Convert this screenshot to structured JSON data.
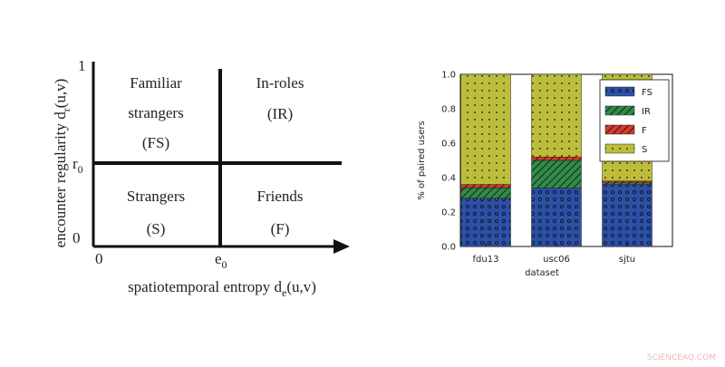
{
  "diagram": {
    "y_axis_label": {
      "text": "encounter regularity d",
      "sub": "r",
      "tail": "(u,v)"
    },
    "x_axis_label": {
      "text": "spatiotemporal entropy d",
      "sub": "e",
      "tail": "(u,v)"
    },
    "y_ticks": {
      "top": "1",
      "mid": {
        "text": "r",
        "sub": "0"
      },
      "bottom": "0"
    },
    "x_ticks": {
      "left": "0",
      "mid": {
        "text": "e",
        "sub": "0"
      }
    },
    "quadrants": {
      "top_left": [
        "Familiar",
        "strangers",
        "(FS)"
      ],
      "top_right": [
        "In-roles",
        "(IR)"
      ],
      "bottom_left": [
        "Strangers",
        "(S)"
      ],
      "bottom_right": [
        "Friends",
        "(F)"
      ]
    }
  },
  "chart_data": {
    "type": "stacked_bar",
    "xlabel": "dataset",
    "ylabel": "% of paired users",
    "categories": [
      "fdu13",
      "usc06",
      "sjtu"
    ],
    "series": [
      {
        "name": "FS",
        "color": "#2b50a8",
        "values": [
          0.28,
          0.34,
          0.36
        ]
      },
      {
        "name": "IR",
        "color": "#2f8c47",
        "values": [
          0.06,
          0.16,
          0.01
        ]
      },
      {
        "name": "F",
        "color": "#d33a2b",
        "values": [
          0.02,
          0.02,
          0.01
        ]
      },
      {
        "name": "S",
        "color": "#bdbd3c",
        "values": [
          0.64,
          0.48,
          0.62
        ]
      }
    ],
    "ylim": [
      0,
      1
    ],
    "yticks": [
      {
        "value": 0,
        "label": "0.0"
      },
      0.2,
      0.4,
      0.6,
      0.8,
      {
        "value": 1,
        "label": "1.0"
      }
    ],
    "legend": "upper right"
  },
  "watermark": "SCIENCEAQ.COM"
}
